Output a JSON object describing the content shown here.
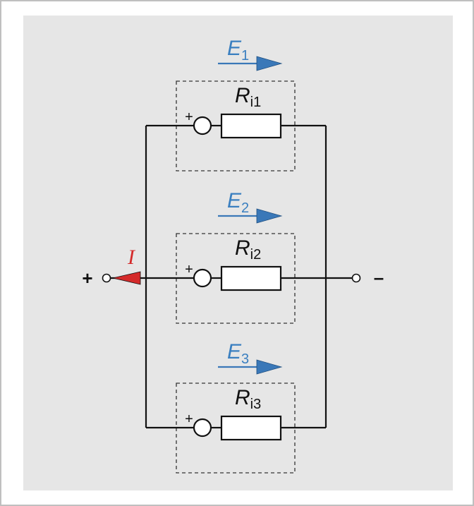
{
  "colors": {
    "background": "#e6e6e6",
    "frame": "#bfbfbf",
    "emf_label": "#3a7fc0",
    "emf_arrow": "#3a78b8",
    "current": "#d42a2a",
    "wire": "#111111"
  },
  "terminals": {
    "plus": "+",
    "minus": "–"
  },
  "current": {
    "label": "I"
  },
  "branches": [
    {
      "emf_main": "E",
      "emf_sub": "1",
      "res_main": "R",
      "res_sub": "i1",
      "polarity": "+"
    },
    {
      "emf_main": "E",
      "emf_sub": "2",
      "res_main": "R",
      "res_sub": "i2",
      "polarity": "+"
    },
    {
      "emf_main": "E",
      "emf_sub": "3",
      "res_main": "R",
      "res_sub": "i3",
      "polarity": "+"
    }
  ]
}
